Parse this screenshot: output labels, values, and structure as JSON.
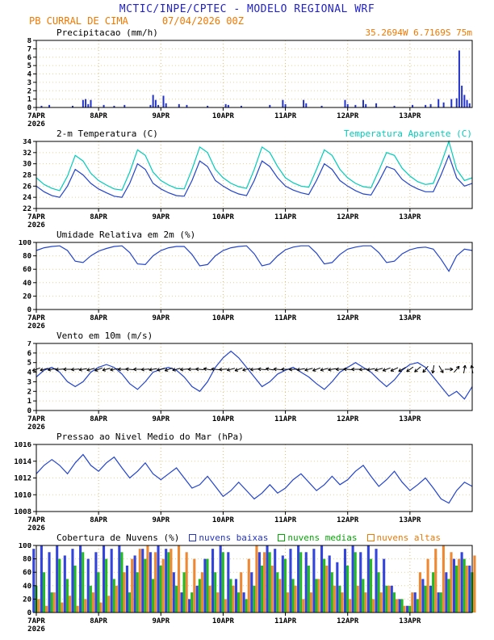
{
  "header": {
    "title": "MCTIC/INPE/CPTEC - MODELO REGIONAL WRF",
    "station": "PB CURRAL DE CIMA",
    "run": "07/04/2026 00Z",
    "title_color": "#2222cc",
    "accent_color": "#f07800"
  },
  "chart_data": {
    "type": "meteogram",
    "x_axis": {
      "unit": "hours_since_07APR2026_00Z",
      "range": [
        0,
        168
      ],
      "day_ticks": [
        {
          "t": 0,
          "label": "7APR",
          "sub": "2026"
        },
        {
          "t": 24,
          "label": "8APR"
        },
        {
          "t": 48,
          "label": "9APR"
        },
        {
          "t": 72,
          "label": "10APR"
        },
        {
          "t": 96,
          "label": "11APR"
        },
        {
          "t": 120,
          "label": "12APR"
        },
        {
          "t": 144,
          "label": "13APR"
        }
      ]
    },
    "panels": [
      {
        "id": "precipitation",
        "type": "bar",
        "title": "Precipitacao (mm/h)",
        "right_label": "35.2694W 6.7169S 75m",
        "right_label_color": "#f07800",
        "ylim": [
          0,
          8
        ],
        "yticks": [
          0,
          1,
          2,
          3,
          4,
          5,
          6,
          7,
          8
        ],
        "bar_color": "#2233cc",
        "x": [
          2,
          5,
          14,
          18,
          19,
          20,
          21,
          26,
          30,
          34,
          44,
          45,
          46,
          47,
          49,
          50,
          55,
          58,
          66,
          73,
          74,
          79,
          90,
          95,
          96,
          103,
          104,
          110,
          119,
          120,
          123,
          126,
          127,
          131,
          138,
          145,
          150,
          152,
          155,
          157,
          160,
          162,
          163,
          164,
          165,
          166,
          167
        ],
        "values": [
          0.2,
          0.3,
          0.2,
          0.9,
          1.0,
          0.4,
          0.9,
          0.3,
          0.2,
          0.3,
          0.3,
          1.5,
          0.9,
          0.3,
          1.4,
          0.5,
          0.4,
          0.3,
          0.2,
          0.4,
          0.3,
          0.2,
          0.3,
          0.9,
          0.4,
          0.9,
          0.5,
          0.2,
          0.9,
          0.4,
          0.3,
          0.9,
          0.4,
          0.5,
          0.2,
          0.3,
          0.3,
          0.4,
          1.0,
          0.6,
          1.0,
          1.1,
          6.8,
          2.6,
          1.5,
          0.9,
          0.5
        ]
      },
      {
        "id": "temperature",
        "type": "line",
        "title": "2-m Temperatura (C)",
        "right_label": "Temperatura Aparente (C)",
        "right_label_color": "#00ccbb",
        "ylim": [
          22,
          34
        ],
        "yticks": [
          22,
          24,
          26,
          28,
          30,
          32,
          34
        ],
        "x_step": 3,
        "series": [
          {
            "name": "2-m Temperatura (C)",
            "color": "#2244cc",
            "values": [
              26.0,
              25.0,
              24.3,
              24.0,
              26.0,
              29.0,
              28.0,
              26.5,
              25.5,
              24.8,
              24.2,
              24.0,
              26.5,
              30.0,
              29.0,
              26.5,
              25.5,
              24.8,
              24.3,
              24.2,
              27.0,
              30.5,
              29.5,
              27.0,
              26.0,
              25.2,
              24.6,
              24.3,
              27.0,
              30.5,
              29.5,
              27.5,
              26.0,
              25.3,
              24.8,
              24.5,
              27.0,
              30.0,
              29.0,
              27.0,
              26.0,
              25.2,
              24.6,
              24.4,
              26.8,
              29.5,
              29.0,
              27.2,
              26.2,
              25.5,
              25.0,
              25.0,
              28.0,
              31.5,
              27.5,
              26.0,
              26.5
            ]
          },
          {
            "name": "Temperatura Aparente (C)",
            "color": "#00ccbb",
            "values": [
              27.5,
              26.3,
              25.6,
              25.2,
              27.8,
              31.5,
              30.5,
              28.3,
              27.0,
              26.2,
              25.5,
              25.3,
              28.5,
              32.5,
              31.5,
              28.5,
              27.0,
              26.2,
              25.6,
              25.5,
              29.0,
              33.0,
              32.0,
              29.0,
              27.5,
              26.5,
              25.9,
              25.6,
              29.0,
              33.0,
              32.0,
              29.5,
              27.5,
              26.6,
              26.0,
              25.8,
              29.0,
              32.5,
              31.5,
              29.0,
              27.5,
              26.5,
              25.9,
              25.7,
              28.8,
              32.0,
              31.5,
              29.2,
              27.8,
              26.8,
              26.3,
              26.5,
              30.0,
              34.0,
              29.0,
              27.0,
              27.5
            ]
          }
        ]
      },
      {
        "id": "humidity",
        "type": "line",
        "title": "Umidade Relativa em 2m (%)",
        "ylim": [
          0,
          100
        ],
        "yticks": [
          0,
          20,
          40,
          60,
          80,
          100
        ],
        "x_step": 3,
        "series": [
          {
            "name": "Umidade Relativa em 2m",
            "color": "#2244cc",
            "values": [
              88,
              92,
              94,
              95,
              88,
              72,
              70,
              80,
              87,
              91,
              94,
              95,
              85,
              68,
              67,
              80,
              88,
              92,
              94,
              94,
              82,
              65,
              67,
              80,
              88,
              92,
              94,
              95,
              83,
              65,
              68,
              80,
              89,
              93,
              95,
              95,
              84,
              68,
              70,
              82,
              90,
              93,
              95,
              95,
              85,
              70,
              72,
              83,
              89,
              92,
              93,
              90,
              75,
              57,
              80,
              90,
              88
            ]
          }
        ]
      },
      {
        "id": "wind",
        "type": "wind",
        "title": "Vento em 10m (m/s)",
        "ylim": [
          0,
          7
        ],
        "yticks": [
          0,
          1,
          2,
          3,
          4,
          5,
          6,
          7
        ],
        "x_step": 3,
        "series": [
          {
            "name": "Velocidade do vento 10m",
            "color": "#2244cc",
            "values": [
              3.5,
              4.2,
              4.5,
              4.0,
              3.0,
              2.5,
              3.0,
              4.0,
              4.5,
              4.8,
              4.5,
              3.8,
              2.8,
              2.2,
              3.0,
              4.0,
              4.3,
              4.5,
              4.2,
              3.5,
              2.5,
              2.0,
              3.0,
              4.5,
              5.5,
              6.2,
              5.5,
              4.5,
              3.5,
              2.5,
              3.0,
              3.8,
              4.2,
              4.5,
              4.0,
              3.5,
              2.8,
              2.2,
              3.0,
              4.0,
              4.5,
              5.0,
              4.5,
              4.0,
              3.2,
              2.5,
              3.2,
              4.2,
              4.8,
              5.0,
              4.5,
              3.5,
              2.5,
              1.5,
              2.0,
              1.2,
              2.5
            ]
          }
        ],
        "barbs": {
          "color": "#000000",
          "level": 4.3,
          "directions_deg_pointing_to": [
            250,
            255,
            260,
            265,
            270,
            265,
            260,
            255,
            250,
            255,
            260,
            270,
            275,
            270,
            265,
            260,
            255,
            250,
            255,
            265,
            270,
            275,
            280,
            275,
            265,
            255,
            250,
            255,
            265,
            275,
            280,
            275,
            270,
            265,
            260,
            255,
            250,
            255,
            260,
            270,
            275,
            270,
            265,
            260,
            255,
            250,
            245,
            240,
            235,
            230,
            220,
            190,
            150,
            90,
            40,
            10,
            350
          ]
        }
      },
      {
        "id": "pressure",
        "type": "line",
        "title": "Pressao ao Nivel Medio do Mar (hPa)",
        "ylim": [
          1008,
          1016
        ],
        "yticks": [
          1008,
          1010,
          1012,
          1014,
          1016
        ],
        "x_step": 3,
        "series": [
          {
            "name": "Pressao ao nivel medio do mar",
            "color": "#2244cc",
            "values": [
              1012.5,
              1013.5,
              1014.2,
              1013.5,
              1012.5,
              1013.8,
              1014.8,
              1013.5,
              1012.8,
              1013.8,
              1014.5,
              1013.2,
              1012.0,
              1012.8,
              1013.8,
              1012.5,
              1011.8,
              1012.5,
              1013.2,
              1012.0,
              1010.8,
              1011.2,
              1012.2,
              1011.0,
              1009.8,
              1010.5,
              1011.5,
              1010.5,
              1009.5,
              1010.2,
              1011.2,
              1010.2,
              1010.8,
              1011.8,
              1012.5,
              1011.5,
              1010.5,
              1011.2,
              1012.2,
              1011.2,
              1011.8,
              1012.8,
              1013.5,
              1012.2,
              1011.0,
              1011.8,
              1012.8,
              1011.5,
              1010.5,
              1011.2,
              1012.0,
              1010.8,
              1009.5,
              1009.0,
              1010.5,
              1011.5,
              1011.0
            ]
          }
        ]
      },
      {
        "id": "clouds",
        "type": "cloud-bars",
        "title": "Cobertura de Nuvens (%)",
        "ylim": [
          0,
          100
        ],
        "yticks": [
          0,
          20,
          40,
          60,
          80,
          100
        ],
        "x_step": 3,
        "legend": [
          {
            "label": "nuvens baixas",
            "color": "#2233cc"
          },
          {
            "label": "nuvens medias",
            "color": "#00aa00"
          },
          {
            "label": "nuvens altas",
            "color": "#ee7700"
          }
        ],
        "series": [
          {
            "name": "nuvens baixas",
            "color": "#3344dd",
            "values": [
              95,
              100,
              90,
              100,
              85,
              95,
              100,
              80,
              90,
              100,
              95,
              100,
              70,
              85,
              95,
              90,
              100,
              95,
              60,
              30,
              20,
              40,
              80,
              95,
              100,
              90,
              50,
              30,
              60,
              90,
              100,
              95,
              85,
              95,
              100,
              90,
              95,
              100,
              85,
              75,
              95,
              100,
              90,
              100,
              95,
              80,
              40,
              20,
              10,
              30,
              50,
              40,
              30,
              60,
              80,
              90,
              70
            ]
          },
          {
            "name": "nuvens medias",
            "color": "#22bb22",
            "values": [
              40,
              60,
              30,
              80,
              50,
              70,
              90,
              40,
              60,
              80,
              50,
              90,
              30,
              60,
              80,
              50,
              70,
              90,
              40,
              60,
              30,
              50,
              80,
              60,
              90,
              50,
              30,
              20,
              40,
              70,
              90,
              60,
              80,
              50,
              90,
              70,
              50,
              80,
              60,
              40,
              70,
              90,
              50,
              80,
              60,
              40,
              30,
              20,
              10,
              20,
              40,
              60,
              30,
              50,
              70,
              80,
              60
            ]
          },
          {
            "name": "nuvens altas",
            "color": "#ee8833",
            "values": [
              20,
              10,
              30,
              15,
              25,
              10,
              20,
              30,
              15,
              25,
              40,
              60,
              80,
              95,
              100,
              90,
              80,
              95,
              100,
              90,
              80,
              60,
              40,
              30,
              20,
              40,
              60,
              80,
              100,
              90,
              70,
              50,
              30,
              40,
              20,
              30,
              50,
              70,
              40,
              30,
              20,
              40,
              30,
              20,
              30,
              40,
              20,
              10,
              30,
              60,
              80,
              95,
              100,
              90,
              80,
              70,
              85
            ]
          }
        ]
      }
    ]
  }
}
